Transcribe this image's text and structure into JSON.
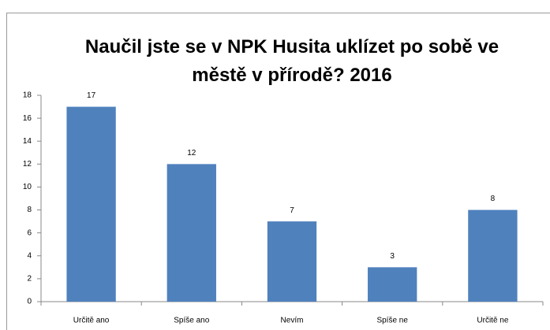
{
  "chart_data": {
    "type": "bar",
    "title": "Naučil jste se v NPK Husita uklízet po sobě ve městě v přírodě? 2016",
    "categories": [
      "Určitě ano",
      "Spíše ano",
      "Nevím",
      "Spíše ne",
      "Určitě ne"
    ],
    "values": [
      17,
      12,
      7,
      3,
      8
    ],
    "color": "#4f81bd",
    "ylim": [
      0,
      18
    ],
    "yticks": [
      0,
      2,
      4,
      6,
      8,
      10,
      12,
      14,
      16,
      18
    ],
    "grid": false
  }
}
